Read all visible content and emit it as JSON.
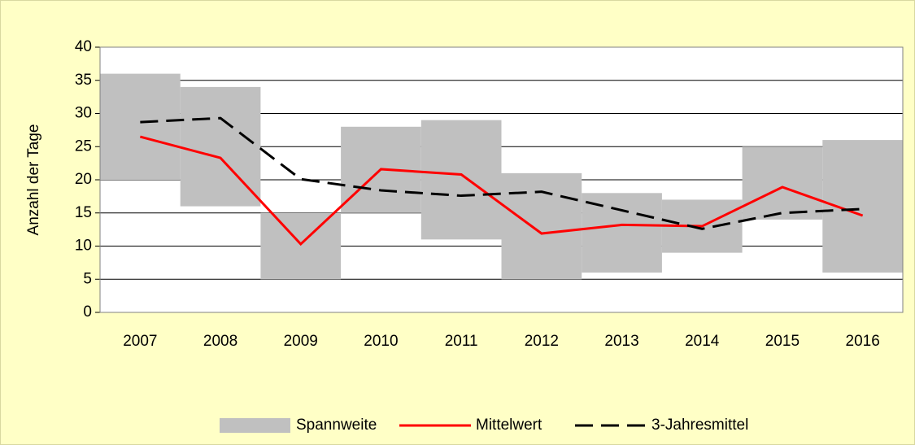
{
  "chart_data": {
    "type": "range_bar_line",
    "y_label": "Anzahl der Tage",
    "categories": [
      "2007",
      "2008",
      "2009",
      "2010",
      "2011",
      "2012",
      "2013",
      "2014",
      "2015",
      "2016"
    ],
    "series": [
      {
        "name": "Spannweite",
        "kind": "range",
        "color": "#c0c0c0",
        "low": [
          20,
          16,
          5,
          15,
          11,
          5,
          6,
          9,
          14,
          6
        ],
        "high": [
          36,
          34,
          15,
          28,
          29,
          21,
          18,
          17,
          25,
          26
        ]
      },
      {
        "name": "Mittelwert",
        "kind": "line",
        "color": "#ff0000",
        "dash": false,
        "values": [
          26.5,
          23.3,
          10.3,
          21.6,
          20.8,
          11.9,
          13.2,
          13.0,
          18.9,
          14.6
        ]
      },
      {
        "name": "3-Jahresmittel",
        "kind": "line",
        "color": "#000000",
        "dash": true,
        "values": [
          28.7,
          29.3,
          20.1,
          18.4,
          17.6,
          18.2,
          15.4,
          12.6,
          15.0,
          15.6
        ]
      }
    ],
    "ylim": [
      0,
      40
    ],
    "yticks": [
      0,
      5,
      10,
      15,
      20,
      25,
      30,
      35,
      40
    ],
    "grid": true,
    "legend": "bottom"
  }
}
